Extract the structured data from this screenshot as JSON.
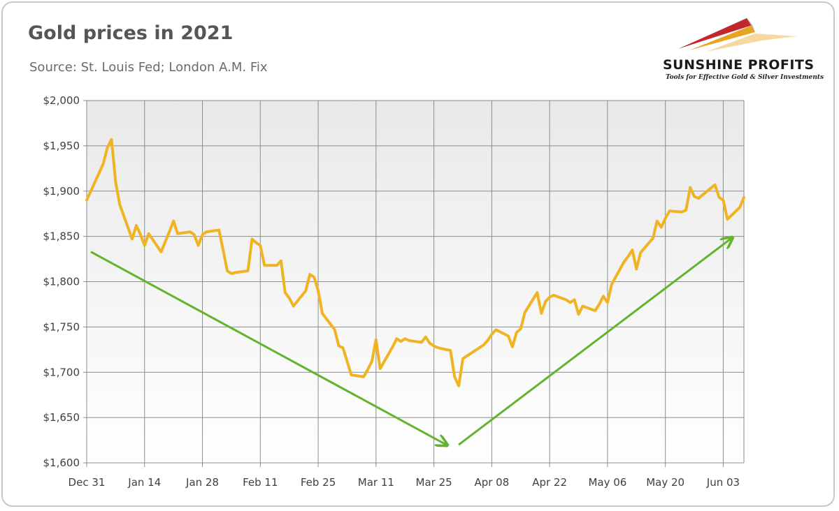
{
  "chart_data": {
    "type": "line",
    "title": "Gold prices in 2021",
    "subtitle": "Source: St. Louis Fed; London A.M. Fix",
    "ylim": [
      1600,
      2000
    ],
    "y_ticks": [
      1600,
      1650,
      1700,
      1750,
      1800,
      1850,
      1900,
      1950,
      2000
    ],
    "y_tick_labels": [
      "$1,600",
      "$1,650",
      "$1,700",
      "$1,750",
      "$1,800",
      "$1,850",
      "$1,900",
      "$1,950",
      "$2,000"
    ],
    "x_range": [
      "2020-12-31",
      "2021-06-08"
    ],
    "x_ticks": [
      "2020-12-31",
      "2021-01-14",
      "2021-01-28",
      "2021-02-11",
      "2021-02-25",
      "2021-03-11",
      "2021-03-25",
      "2021-04-08",
      "2021-04-22",
      "2021-05-06",
      "2021-05-20",
      "2021-06-03"
    ],
    "x_tick_labels": [
      "Dec 31",
      "Jan 14",
      "Jan 28",
      "Feb 11",
      "Feb 25",
      "Mar 11",
      "Mar 25",
      "Apr 08",
      "Apr 22",
      "May 06",
      "May 20",
      "Jun 03"
    ],
    "grid": true,
    "series": [
      {
        "color": "#f0b323",
        "points": [
          [
            "2020-12-31",
            1890
          ],
          [
            "2021-01-04",
            1930
          ],
          [
            "2021-01-05",
            1948
          ],
          [
            "2021-01-06",
            1957
          ],
          [
            "2021-01-07",
            1910
          ],
          [
            "2021-01-08",
            1885
          ],
          [
            "2021-01-11",
            1847
          ],
          [
            "2021-01-12",
            1862
          ],
          [
            "2021-01-13",
            1852
          ],
          [
            "2021-01-14",
            1840
          ],
          [
            "2021-01-15",
            1853
          ],
          [
            "2021-01-18",
            1833
          ],
          [
            "2021-01-20",
            1855
          ],
          [
            "2021-01-21",
            1867
          ],
          [
            "2021-01-22",
            1853
          ],
          [
            "2021-01-25",
            1855
          ],
          [
            "2021-01-26",
            1852
          ],
          [
            "2021-01-27",
            1840
          ],
          [
            "2021-01-28",
            1852
          ],
          [
            "2021-01-29",
            1855
          ],
          [
            "2021-02-01",
            1857
          ],
          [
            "2021-02-02",
            1835
          ],
          [
            "2021-02-03",
            1812
          ],
          [
            "2021-02-04",
            1809
          ],
          [
            "2021-02-05",
            1810
          ],
          [
            "2021-02-08",
            1812
          ],
          [
            "2021-02-09",
            1847
          ],
          [
            "2021-02-10",
            1843
          ],
          [
            "2021-02-11",
            1840
          ],
          [
            "2021-02-12",
            1818
          ],
          [
            "2021-02-15",
            1818
          ],
          [
            "2021-02-16",
            1823
          ],
          [
            "2021-02-17",
            1788
          ],
          [
            "2021-02-18",
            1782
          ],
          [
            "2021-02-19",
            1773
          ],
          [
            "2021-02-22",
            1790
          ],
          [
            "2021-02-23",
            1808
          ],
          [
            "2021-02-24",
            1805
          ],
          [
            "2021-02-25",
            1790
          ],
          [
            "2021-02-26",
            1765
          ],
          [
            "2021-03-01",
            1747
          ],
          [
            "2021-03-02",
            1729
          ],
          [
            "2021-03-03",
            1727
          ],
          [
            "2021-03-04",
            1712
          ],
          [
            "2021-03-05",
            1697
          ],
          [
            "2021-03-08",
            1695
          ],
          [
            "2021-03-09",
            1703
          ],
          [
            "2021-03-10",
            1712
          ],
          [
            "2021-03-11",
            1736
          ],
          [
            "2021-03-12",
            1704
          ],
          [
            "2021-03-15",
            1728
          ],
          [
            "2021-03-16",
            1737
          ],
          [
            "2021-03-17",
            1734
          ],
          [
            "2021-03-18",
            1737
          ],
          [
            "2021-03-19",
            1735
          ],
          [
            "2021-03-22",
            1733
          ],
          [
            "2021-03-23",
            1739
          ],
          [
            "2021-03-24",
            1732
          ],
          [
            "2021-03-25",
            1729
          ],
          [
            "2021-03-26",
            1727
          ],
          [
            "2021-03-29",
            1724
          ],
          [
            "2021-03-30",
            1695
          ],
          [
            "2021-03-31",
            1685
          ],
          [
            "2021-04-01",
            1715
          ],
          [
            "2021-04-06",
            1730
          ],
          [
            "2021-04-07",
            1735
          ],
          [
            "2021-04-08",
            1742
          ],
          [
            "2021-04-09",
            1747
          ],
          [
            "2021-04-12",
            1740
          ],
          [
            "2021-04-13",
            1728
          ],
          [
            "2021-04-14",
            1744
          ],
          [
            "2021-04-15",
            1748
          ],
          [
            "2021-04-16",
            1766
          ],
          [
            "2021-04-19",
            1788
          ],
          [
            "2021-04-20",
            1765
          ],
          [
            "2021-04-21",
            1778
          ],
          [
            "2021-04-22",
            1783
          ],
          [
            "2021-04-23",
            1785
          ],
          [
            "2021-04-26",
            1780
          ],
          [
            "2021-04-27",
            1777
          ],
          [
            "2021-04-28",
            1780
          ],
          [
            "2021-04-29",
            1764
          ],
          [
            "2021-04-30",
            1773
          ],
          [
            "2021-05-03",
            1768
          ],
          [
            "2021-05-04",
            1775
          ],
          [
            "2021-05-05",
            1784
          ],
          [
            "2021-05-06",
            1777
          ],
          [
            "2021-05-07",
            1797
          ],
          [
            "2021-05-10",
            1822
          ],
          [
            "2021-05-11",
            1828
          ],
          [
            "2021-05-12",
            1835
          ],
          [
            "2021-05-13",
            1814
          ],
          [
            "2021-05-14",
            1832
          ],
          [
            "2021-05-17",
            1848
          ],
          [
            "2021-05-18",
            1867
          ],
          [
            "2021-05-19",
            1860
          ],
          [
            "2021-05-20",
            1870
          ],
          [
            "2021-05-21",
            1878
          ],
          [
            "2021-05-24",
            1877
          ],
          [
            "2021-05-25",
            1879
          ],
          [
            "2021-05-26",
            1904
          ],
          [
            "2021-05-27",
            1894
          ],
          [
            "2021-05-28",
            1892
          ],
          [
            "2021-06-01",
            1907
          ],
          [
            "2021-06-02",
            1893
          ],
          [
            "2021-06-03",
            1890
          ],
          [
            "2021-06-04",
            1869
          ],
          [
            "2021-06-07",
            1882
          ],
          [
            "2021-06-08",
            1893
          ]
        ]
      }
    ],
    "annotations": [
      {
        "type": "arrow",
        "color": "#63b32e",
        "from": [
          "2021-01-01",
          1833
        ],
        "to": [
          "2021-03-28",
          1620
        ]
      },
      {
        "type": "arrow",
        "color": "#63b32e",
        "from": [
          "2021-03-31",
          1620
        ],
        "to": [
          "2021-06-05",
          1848
        ]
      }
    ]
  },
  "logo": {
    "name": "SUNSHINE PROFITS",
    "tagline": "Tools for Effective Gold & Silver Investments"
  }
}
